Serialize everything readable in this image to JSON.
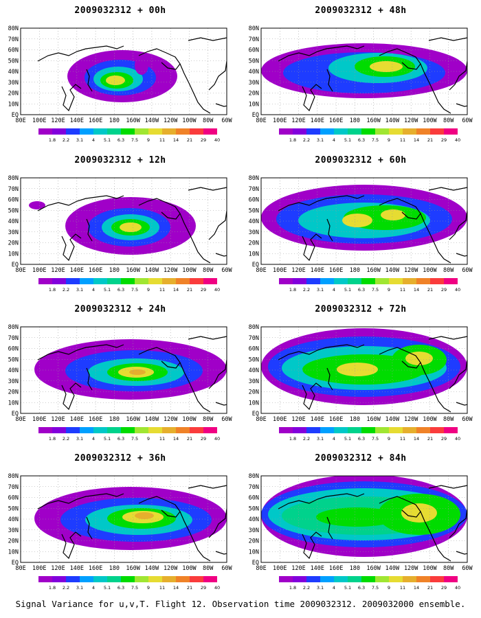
{
  "caption": "Signal Variance for u,v,T. Flight 12. Observation time 2009032312. 2009032000 ensemble.",
  "lat_labels": [
    "80N",
    "70N",
    "60N",
    "50N",
    "40N",
    "30N",
    "20N",
    "10N",
    "EQ"
  ],
  "lon_labels": [
    "80E",
    "100E",
    "120E",
    "140E",
    "160E",
    "180",
    "160W",
    "140W",
    "120W",
    "100W",
    "80W",
    "60W"
  ],
  "colorbar": {
    "labels": [
      "1.8",
      "2.2",
      "3.1",
      "4",
      "5.1",
      "6.3",
      "7.5",
      "9",
      "11",
      "14",
      "21",
      "29",
      "40"
    ],
    "colors": [
      "#a000c8",
      "#8200dc",
      "#1e3cff",
      "#00a0ff",
      "#00c8c8",
      "#00d28c",
      "#00dc00",
      "#a0e632",
      "#e6dc32",
      "#e6af2d",
      "#f08228",
      "#fa3c3c",
      "#f00082"
    ]
  },
  "panels": [
    {
      "id": "p00",
      "title": "2009032312 + 00h"
    },
    {
      "id": "p48",
      "title": "2009032312 + 48h"
    },
    {
      "id": "p12",
      "title": "2009032312 + 12h"
    },
    {
      "id": "p60",
      "title": "2009032312 + 60h"
    },
    {
      "id": "p24",
      "title": "2009032312 + 24h"
    },
    {
      "id": "p72",
      "title": "2009032312 + 72h"
    },
    {
      "id": "p36",
      "title": "2009032312 + 36h"
    },
    {
      "id": "p84",
      "title": "2009032312 + 84h"
    }
  ]
}
